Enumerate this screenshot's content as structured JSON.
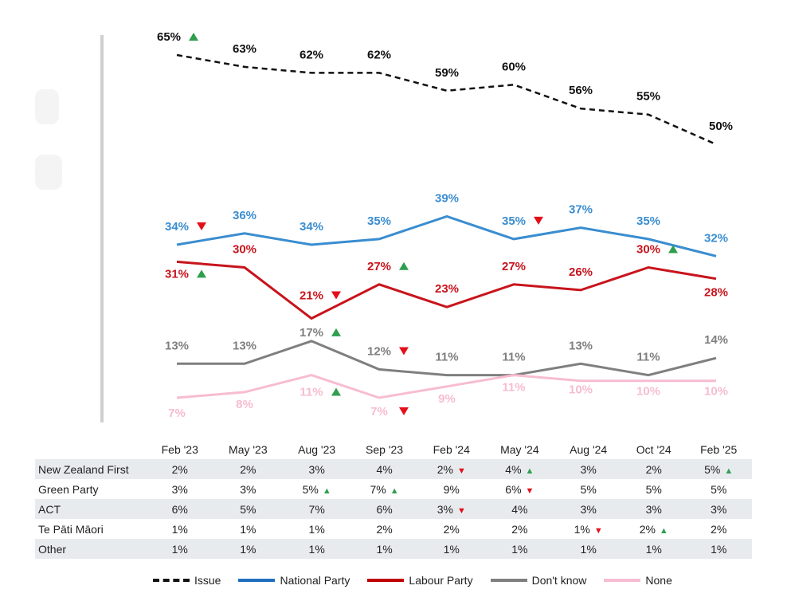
{
  "chart_data": {
    "type": "line",
    "categories": [
      "Feb '23",
      "May '23",
      "Aug '23",
      "Sep '23",
      "Feb '24",
      "May '24",
      "Aug '24",
      "Oct '24",
      "Feb '25"
    ],
    "series": [
      {
        "name": "Issue",
        "color": "#111111",
        "dash": true,
        "values": [
          65,
          63,
          62,
          62,
          59,
          60,
          56,
          55,
          50
        ],
        "labels": [
          "65%",
          "63%",
          "62%",
          "62%",
          "59%",
          "60%",
          "56%",
          "55%",
          "50%"
        ],
        "markers": [
          "up",
          "",
          "",
          "",
          "",
          "",
          "",
          "",
          ""
        ]
      },
      {
        "name": "National Party",
        "color": "#3a8dd0",
        "values": [
          34,
          36,
          34,
          35,
          39,
          35,
          37,
          35,
          32
        ],
        "labels": [
          "34%",
          "36%",
          "34%",
          "35%",
          "39%",
          "35%",
          "37%",
          "35%",
          "32%"
        ],
        "markers": [
          "down",
          "",
          "",
          "",
          "",
          "down",
          "",
          "",
          ""
        ]
      },
      {
        "name": "Labour Party",
        "color": "#c8141c",
        "values": [
          31,
          30,
          21,
          27,
          23,
          27,
          26,
          30,
          28
        ],
        "labels": [
          "31%",
          "30%",
          "21%",
          "27%",
          "23%",
          "27%",
          "26%",
          "30%",
          "28%"
        ],
        "markers": [
          "up",
          "",
          "down",
          "up",
          "",
          "",
          "",
          "up",
          ""
        ]
      },
      {
        "name": "Don't know",
        "color": "#7f7f7f",
        "values": [
          13,
          13,
          17,
          12,
          11,
          11,
          13,
          11,
          14
        ],
        "labels": [
          "13%",
          "13%",
          "17%",
          "12%",
          "11%",
          "11%",
          "13%",
          "11%",
          "14%"
        ],
        "markers": [
          "",
          "",
          "up",
          "down",
          "",
          "",
          "",
          "",
          ""
        ]
      },
      {
        "name": "None",
        "color": "#f7bcd2",
        "values": [
          7,
          8,
          11,
          7,
          9,
          11,
          10,
          10,
          10
        ],
        "labels": [
          "7%",
          "8%",
          "11%",
          "7%",
          "9%",
          "11%",
          "10%",
          "10%",
          "10%"
        ],
        "markers": [
          "",
          "",
          "up",
          "down",
          "",
          "",
          "",
          "",
          ""
        ]
      }
    ],
    "colors": {
      "up": "#2f9e4f",
      "down": "#e3101a"
    }
  },
  "table": {
    "headers": [
      "Feb '23",
      "May '23",
      "Aug '23",
      "Sep '23",
      "Feb '24",
      "May '24",
      "Aug '24",
      "Oct '24",
      "Feb '25"
    ],
    "rows": [
      {
        "label": "New Zealand First",
        "values": [
          "2%",
          "2%",
          "3%",
          "4%",
          "2%",
          "4%",
          "3%",
          "2%",
          "5%"
        ],
        "markers": [
          "",
          "",
          "",
          "",
          "down",
          "up",
          "",
          "",
          "up"
        ]
      },
      {
        "label": "Green Party",
        "values": [
          "3%",
          "3%",
          "5%",
          "7%",
          "9%",
          "6%",
          "5%",
          "5%",
          "5%"
        ],
        "markers": [
          "",
          "",
          "up",
          "up",
          "",
          "down",
          "",
          "",
          ""
        ]
      },
      {
        "label": "ACT",
        "values": [
          "6%",
          "5%",
          "7%",
          "6%",
          "3%",
          "4%",
          "3%",
          "3%",
          "3%"
        ],
        "markers": [
          "",
          "",
          "",
          "",
          "down",
          "",
          "",
          "",
          ""
        ]
      },
      {
        "label": "Te Pāti Māori",
        "values": [
          "1%",
          "1%",
          "1%",
          "2%",
          "2%",
          "2%",
          "1%",
          "2%",
          "2%"
        ],
        "markers": [
          "",
          "",
          "",
          "",
          "",
          "",
          "down",
          "up",
          ""
        ]
      },
      {
        "label": "Other",
        "values": [
          "1%",
          "1%",
          "1%",
          "1%",
          "1%",
          "1%",
          "1%",
          "1%",
          "1%"
        ],
        "markers": [
          "",
          "",
          "",
          "",
          "",
          "",
          "",
          "",
          ""
        ]
      }
    ]
  },
  "legend": [
    {
      "label": "Issue",
      "color": "#111111",
      "dash": true
    },
    {
      "label": "National Party",
      "color": "#1f6fbf",
      "dash": false
    },
    {
      "label": "Labour Party",
      "color": "#c00000",
      "dash": false
    },
    {
      "label": "Don't know",
      "color": "#7f7f7f",
      "dash": false
    },
    {
      "label": "None",
      "color": "#f7bcd2",
      "dash": false
    }
  ]
}
